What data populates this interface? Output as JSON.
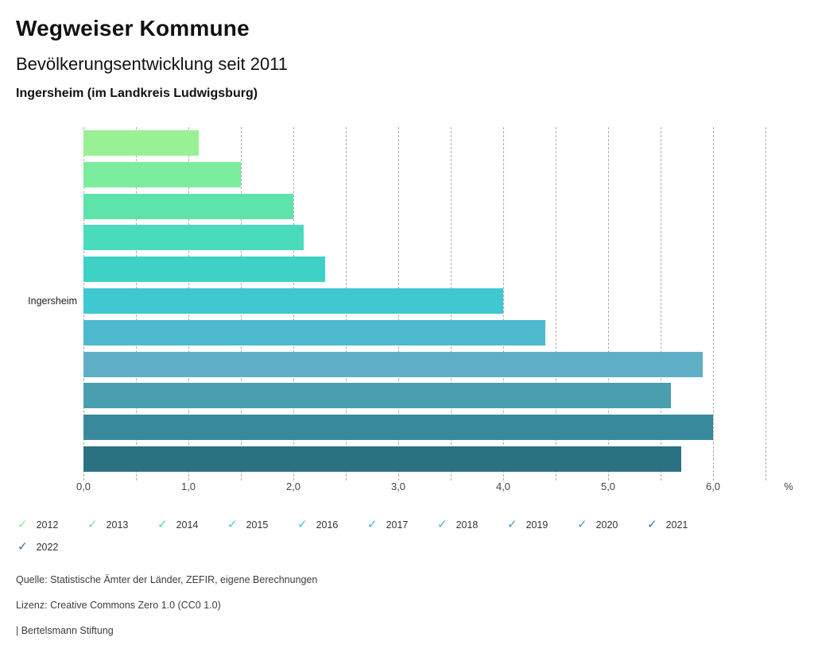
{
  "header": {
    "title": "Wegweiser Kommune",
    "subtitle": "Bevölkerungsentwicklung seit 2011",
    "location": "Ingersheim (im Landkreis Ludwigsburg)"
  },
  "chart_data": {
    "type": "bar",
    "orientation": "horizontal",
    "title": "Bevölkerungsentwicklung seit 2011",
    "category_label": "Ingersheim",
    "unit": "%",
    "xlim": [
      0,
      6.5
    ],
    "grid_step": 0.5,
    "grid_style": "dashed",
    "x_tick_values": [
      0,
      1,
      2,
      3,
      4,
      5,
      6
    ],
    "x_tick_labels": [
      "0,0",
      "1,0",
      "2,0",
      "3,0",
      "4,0",
      "5,0",
      "6,0"
    ],
    "series": [
      {
        "year": "2012",
        "value": 1.1,
        "color": "#9af195"
      },
      {
        "year": "2013",
        "value": 1.5,
        "color": "#7cec9f"
      },
      {
        "year": "2014",
        "value": 2.0,
        "color": "#5ee3ab"
      },
      {
        "year": "2015",
        "value": 2.1,
        "color": "#49dbbb"
      },
      {
        "year": "2016",
        "value": 2.3,
        "color": "#3ed2c6"
      },
      {
        "year": "2017",
        "value": 4.0,
        "color": "#3fc8cf"
      },
      {
        "year": "2018",
        "value": 4.4,
        "color": "#4db9cd"
      },
      {
        "year": "2019",
        "value": 5.9,
        "color": "#5fb0c7"
      },
      {
        "year": "2020",
        "value": 5.6,
        "color": "#499eb0"
      },
      {
        "year": "2021",
        "value": 6.0,
        "color": "#38899c"
      },
      {
        "year": "2022",
        "value": 5.7,
        "color": "#2a7282"
      }
    ]
  },
  "legend": {
    "check_icon": "✓",
    "rows": [
      [
        {
          "label": "2012",
          "color": "#8feb97"
        },
        {
          "label": "2013",
          "color": "#68e1a4"
        },
        {
          "label": "2014",
          "color": "#4cd6b5"
        },
        {
          "label": "2015",
          "color": "#3ecdc4"
        },
        {
          "label": "2016",
          "color": "#3cc3d1"
        },
        {
          "label": "2017",
          "color": "#40b6d4"
        },
        {
          "label": "2018",
          "color": "#4bb0d0"
        },
        {
          "label": "2019",
          "color": "#3f9ec0"
        },
        {
          "label": "2020",
          "color": "#4596b8"
        },
        {
          "label": "2021",
          "color": "#34809f"
        }
      ],
      [
        {
          "label": "2022",
          "color": "#2b6d8d"
        }
      ]
    ]
  },
  "footer": {
    "source": "Quelle: Statistische Ämter der Länder, ZEFIR, eigene Berechnungen",
    "license": "Lizenz: Creative Commons Zero 1.0 (CC0 1.0)",
    "attribution": "| Bertelsmann Stiftung"
  }
}
